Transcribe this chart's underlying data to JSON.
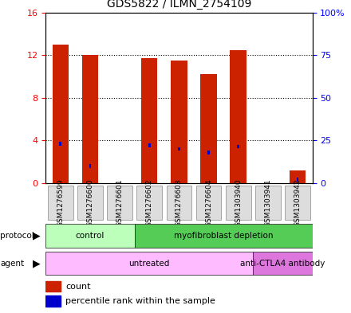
{
  "title": "GDS5822 / ILMN_2754109",
  "samples": [
    "GSM1276599",
    "GSM1276600",
    "GSM1276601",
    "GSM1276602",
    "GSM1276603",
    "GSM1276604",
    "GSM1303940",
    "GSM1303941",
    "GSM1303942"
  ],
  "counts": [
    13.0,
    12.0,
    0.0,
    11.7,
    11.5,
    10.2,
    12.5,
    0.0,
    1.2
  ],
  "percentiles": [
    23.0,
    10.0,
    0.0,
    22.0,
    20.0,
    18.0,
    21.5,
    0.0,
    2.0
  ],
  "bar_color": "#cc2200",
  "pct_color": "#0000cc",
  "ylim_left": [
    0,
    16
  ],
  "ylim_right": [
    0,
    100
  ],
  "yticks_left": [
    0,
    4,
    8,
    12,
    16
  ],
  "ytick_labels_left": [
    "0",
    "4",
    "8",
    "12",
    "16"
  ],
  "yticks_right": [
    0,
    25,
    50,
    75,
    100
  ],
  "ytick_labels_right": [
    "0",
    "25",
    "50",
    "75",
    "100%"
  ],
  "protocol_groups": [
    {
      "label": "control",
      "start": 0,
      "end": 3,
      "color": "#bbffbb"
    },
    {
      "label": "myofibroblast depletion",
      "start": 3,
      "end": 9,
      "color": "#55cc55"
    }
  ],
  "agent_groups": [
    {
      "label": "untreated",
      "start": 0,
      "end": 7,
      "color": "#ffbbff"
    },
    {
      "label": "anti-CTLA4 antibody",
      "start": 7,
      "end": 9,
      "color": "#dd77dd"
    }
  ],
  "legend_count_color": "#cc2200",
  "legend_pct_color": "#0000cc",
  "bg_color": "#ffffff",
  "bar_width": 0.55,
  "pct_bar_width": 0.07
}
